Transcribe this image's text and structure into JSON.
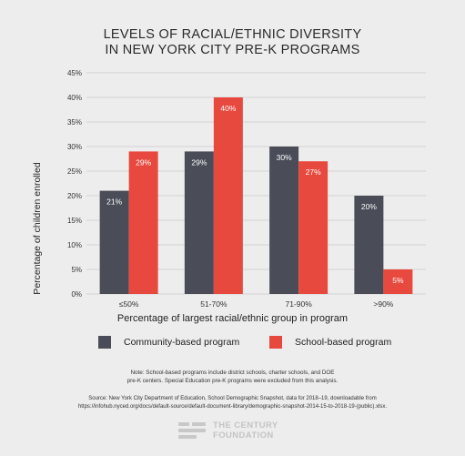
{
  "chart_data": {
    "type": "bar",
    "title": [
      "LEVELS OF RACIAL/ETHNIC DIVERSITY",
      "IN NEW YORK CITY PRE-K PROGRAMS"
    ],
    "xlabel": "Percentage of largest racial/ethnic group in program",
    "ylabel": "Percentage of children enrolled",
    "categories": [
      "≤50%",
      "51-70%",
      "71-90%",
      ">90%"
    ],
    "series": [
      {
        "name": "Community-based program",
        "color": "#4a4d57",
        "values": [
          21,
          29,
          30,
          20
        ],
        "labels": [
          "21%",
          "29%",
          "30%",
          "20%"
        ]
      },
      {
        "name": "School-based program",
        "color": "#e8493f",
        "values": [
          29,
          40,
          27,
          5
        ],
        "labels": [
          "29%",
          "40%",
          "27%",
          "5%"
        ]
      }
    ],
    "ylim": [
      0,
      45
    ],
    "yticks": [
      "0%",
      "5%",
      "10%",
      "15%",
      "20%",
      "25%",
      "30%",
      "35%",
      "40%",
      "45%"
    ],
    "grid": true,
    "legend": "bottom"
  },
  "note": [
    "Note: School-based programs include district schools, charter schools, and DOE",
    "pre-K centers. Special Education pre-K programs were excluded from this analysis."
  ],
  "source": [
    "Source: New York City Department of Education, School Demographic Snapshot, data for 2018–19, downloadable from",
    "https://infohub.nyced.org/docs/default-source/default-document-library/demographic-snapshot-2014-15-to-2018-19-(public).xlsx."
  ],
  "logo": {
    "line1": "THE CENTURY",
    "line2": "FOUNDATION"
  }
}
